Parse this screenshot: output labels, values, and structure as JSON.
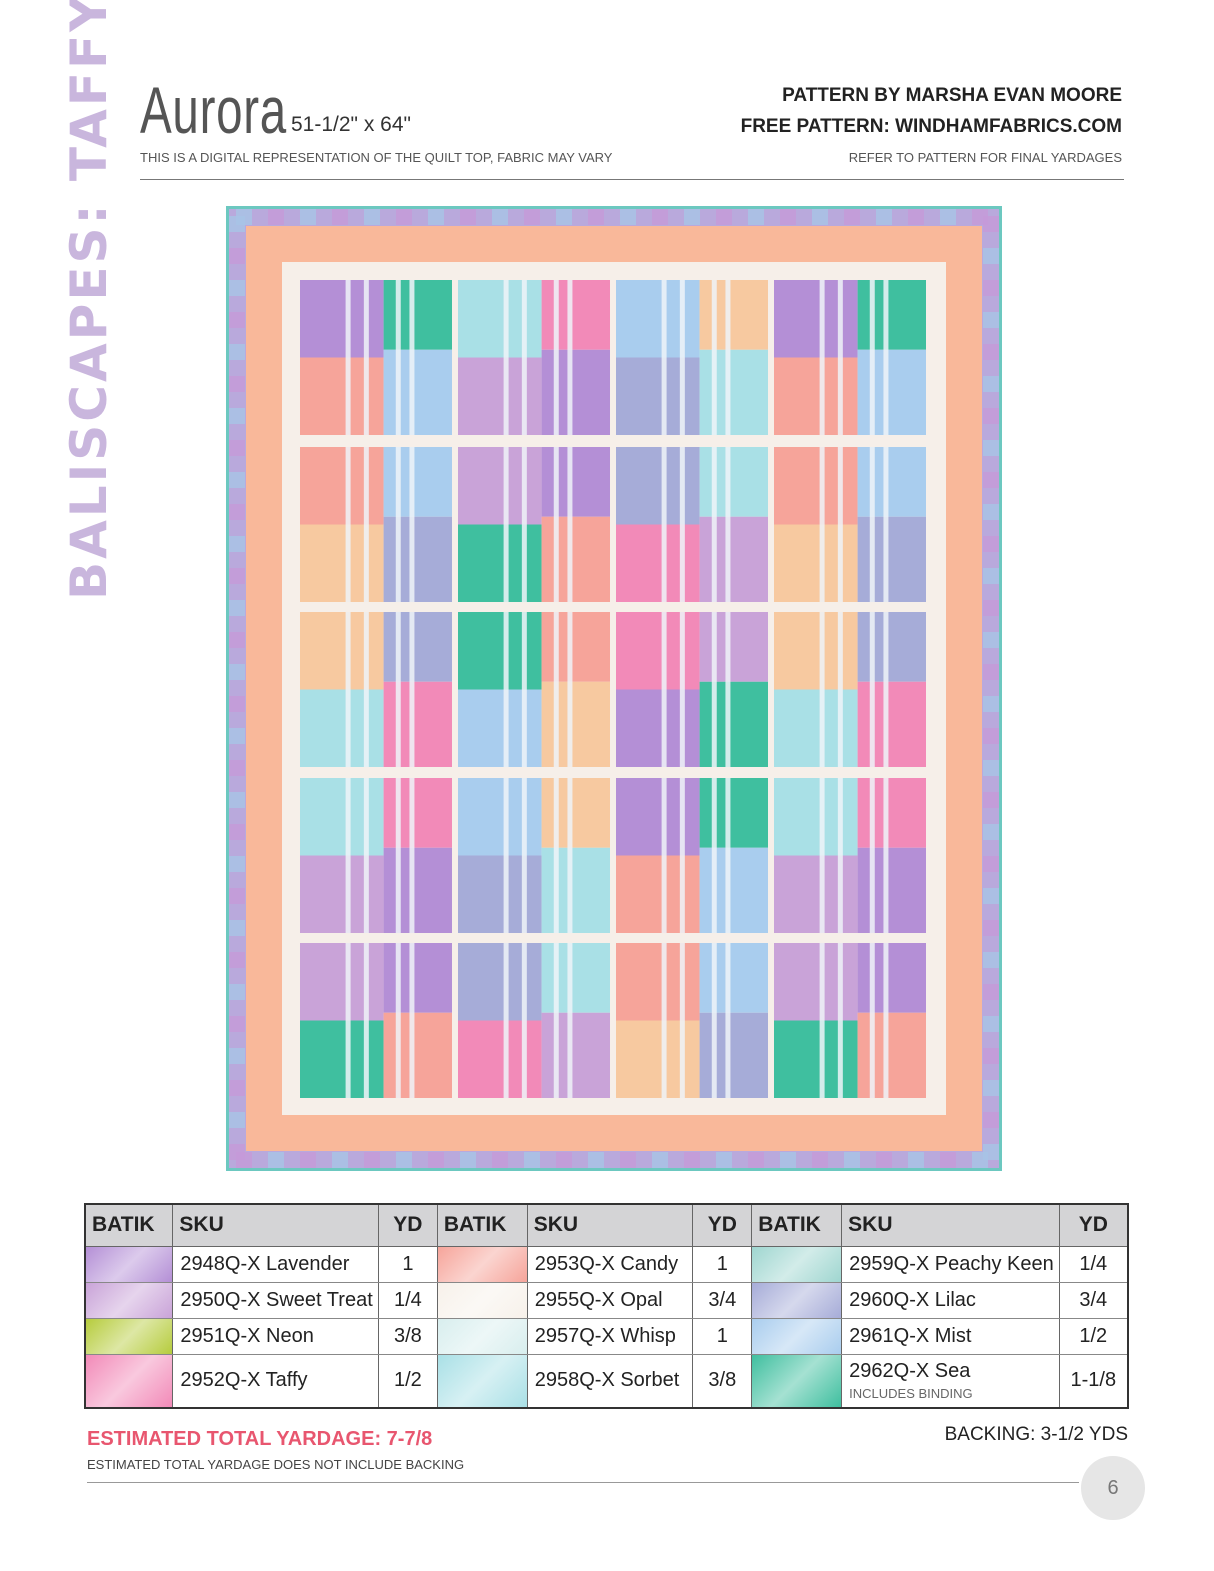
{
  "side_title": "BALISCAPES: TAFFY",
  "header": {
    "title": "Aurora",
    "size": "51-1/2\" x 64\"",
    "disclaimer": "THIS IS A DIGITAL REPRESENTATION OF THE QUILT TOP, FABRIC MAY VARY",
    "pattern_by": "PATTERN BY MARSHA EVAN MOORE",
    "free_pattern": "FREE PATTERN: WINDHAMFABRICS.COM",
    "refer": "REFER TO PATTERN FOR FINAL YARDAGES"
  },
  "table": {
    "headers": [
      "BATIK",
      "SKU",
      "YD"
    ],
    "rows": [
      [
        {
          "sku": "2948Q-X Lavender",
          "yd": "1",
          "color": "#b48fd6"
        },
        {
          "sku": "2953Q-X Candy",
          "yd": "1",
          "color": "#f6a49a"
        },
        {
          "sku": "2959Q-X Peachy Keen",
          "yd": "1/4",
          "color": "#9fd6d0"
        }
      ],
      [
        {
          "sku": "2950Q-X Sweet Treat",
          "yd": "1/4",
          "color": "#c9a3d8"
        },
        {
          "sku": "2955Q-X Opal",
          "yd": "3/4",
          "color": "#f7f1ea"
        },
        {
          "sku": "2960Q-X Lilac",
          "yd": "3/4",
          "color": "#a6acd8"
        }
      ],
      [
        {
          "sku": "2951Q-X Neon",
          "yd": "3/8",
          "color": "#b6cc3d"
        },
        {
          "sku": "2957Q-X Whisp",
          "yd": "1",
          "color": "#d8eeee"
        },
        {
          "sku": "2961Q-X Mist",
          "yd": "1/2",
          "color": "#a9cdee"
        }
      ],
      [
        {
          "sku": "2952Q-X Taffy",
          "yd": "1/2",
          "color": "#f28ab8"
        },
        {
          "sku": "2958Q-X Sorbet",
          "yd": "3/8",
          "color": "#a9e0e6"
        },
        {
          "sku": "2962Q-X Sea",
          "note": "INCLUDES BINDING",
          "yd": "1-1/8",
          "color": "#3fbf9f"
        }
      ]
    ]
  },
  "footer": {
    "total": "ESTIMATED TOTAL YARDAGE: 7-7/8",
    "total_note": "ESTIMATED TOTAL YARDAGE DOES NOT INCLUDE BACKING",
    "backing": "BACKING: 3-1/2 YDS",
    "page": "6"
  },
  "colors": {
    "side_title": "#c9b6dd",
    "total": "#e8566f"
  }
}
